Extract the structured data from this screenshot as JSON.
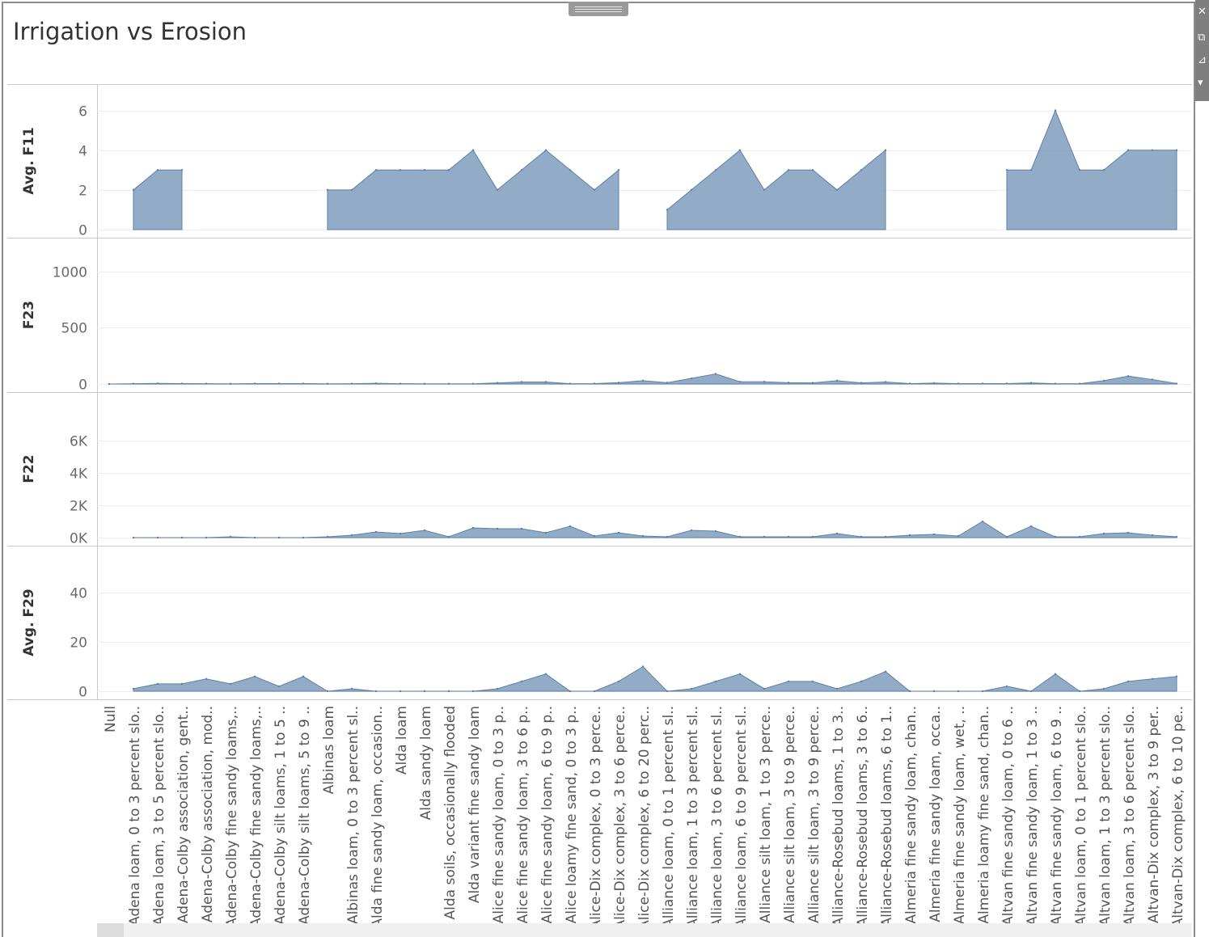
{
  "title": "Irrigation vs Erosion",
  "colors": {
    "area_fill": "#7f9dbd",
    "area_stroke": "#5e7fa6",
    "grid": "#ececec",
    "axis": "#c8c8c8",
    "text": "#555555"
  },
  "icons": {
    "close": "close-icon",
    "duplicate": "duplicate-icon",
    "filter": "filter-icon",
    "more": "more-options-icon"
  },
  "chart_data": {
    "type": "area",
    "categories": [
      "Null",
      "Adena loam, 0 to 3 percent slo..",
      "Adena loam, 3 to 5 percent slo..",
      "Adena-Colby association, gent..",
      "Adena-Colby association, mod..",
      "Adena-Colby fine sandy loams,..",
      "Adena-Colby fine sandy loams,..",
      "Adena-Colby silt loams, 1 to 5 ..",
      "Adena-Colby silt loams, 5 to 9 ..",
      "Albinas loam",
      "Albinas loam, 0 to 3 percent sl..",
      "Alda fine sandy loam, occasion..",
      "Alda loam",
      "Alda sandy loam",
      "Alda soils, occasionally flooded",
      "Alda variant fine sandy loam",
      "Alice fine sandy loam, 0 to 3 p..",
      "Alice fine sandy loam, 3 to 6 p..",
      "Alice fine sandy loam, 6 to 9 p..",
      "Alice loamy fine sand, 0 to 3 p..",
      "Alice-Dix complex, 0 to 3 perce..",
      "Alice-Dix complex, 3 to 6 perce..",
      "Alice-Dix complex, 6 to 20 perc..",
      "Alliance loam, 0 to 1 percent sl..",
      "Alliance loam, 1 to 3 percent sl..",
      "Alliance loam, 3 to 6 percent sl..",
      "Alliance loam, 6 to 9 percent sl..",
      "Alliance silt loam, 1 to 3 perce..",
      "Alliance silt loam, 3 to 9 perce..",
      "Alliance silt loam, 3 to 9 perce..",
      "Alliance-Rosebud loams, 1 to 3..",
      "Alliance-Rosebud loams, 3 to 6..",
      "Alliance-Rosebud loams, 6 to 1..",
      "Almeria fine sandy loam, chan..",
      "Almeria fine sandy loam, occa..",
      "Almeria fine sandy loam, wet, ..",
      "Almeria loamy fine sand, chan..",
      "Altvan fine sandy loam, 0 to 6 ..",
      "Altvan fine sandy loam, 1 to 3 ..",
      "Altvan fine sandy loam, 6 to 9 ..",
      "Altvan loam, 0 to 1 percent slo..",
      "Altvan loam, 1 to 3 percent slo..",
      "Altvan loam, 3 to 6 percent slo..",
      "Altvan-Dix complex, 3 to 9 per..",
      "Altvan-Dix complex, 6 to 10 pe.."
    ],
    "panels": [
      {
        "label": "Avg. F11",
        "ylim": [
          0,
          7
        ],
        "ticks": [
          0,
          2,
          4,
          6
        ],
        "tick_labels": [
          "0",
          "2",
          "4",
          "6"
        ],
        "values": [
          null,
          2,
          3,
          3,
          null,
          null,
          null,
          null,
          null,
          2,
          2,
          3,
          3,
          3,
          3,
          4,
          2,
          3,
          4,
          3,
          2,
          3,
          null,
          1,
          2,
          3,
          4,
          2,
          3,
          3,
          2,
          3,
          4,
          null,
          null,
          null,
          null,
          3,
          3,
          6,
          3,
          3,
          4,
          4,
          4
        ]
      },
      {
        "label": "F23",
        "ylim": [
          0,
          1200
        ],
        "ticks": [
          0,
          500,
          1000
        ],
        "tick_labels": [
          "0",
          "500",
          "1000"
        ],
        "values": [
          0,
          3,
          5,
          4,
          3,
          2,
          4,
          4,
          4,
          2,
          3,
          6,
          3,
          2,
          2,
          2,
          10,
          18,
          18,
          3,
          4,
          12,
          30,
          12,
          50,
          90,
          20,
          20,
          12,
          10,
          30,
          10,
          18,
          4,
          8,
          4,
          4,
          4,
          10,
          3,
          3,
          30,
          70,
          40,
          4
        ]
      },
      {
        "label": "F22",
        "ylim": [
          0,
          8000
        ],
        "ticks": [
          0,
          2000,
          4000,
          6000
        ],
        "tick_labels": [
          "0K",
          "2K",
          "4K",
          "6K"
        ],
        "values": [
          null,
          0,
          0,
          0,
          0,
          50,
          0,
          0,
          0,
          50,
          150,
          350,
          250,
          450,
          50,
          600,
          550,
          550,
          300,
          700,
          100,
          300,
          100,
          50,
          450,
          400,
          50,
          50,
          50,
          50,
          250,
          50,
          50,
          150,
          200,
          100,
          1000,
          50,
          700,
          50,
          50,
          250,
          300,
          150,
          50
        ]
      },
      {
        "label": "Avg. F29",
        "ylim": [
          0,
          50
        ],
        "ticks": [
          0,
          20,
          40
        ],
        "tick_labels": [
          "0",
          "20",
          "40"
        ],
        "values": [
          null,
          1,
          3,
          3,
          5,
          3,
          6,
          2,
          6,
          0,
          1,
          0,
          0,
          0,
          0,
          0,
          1,
          4,
          7,
          0,
          0,
          4,
          10,
          0,
          1,
          4,
          7,
          1,
          4,
          4,
          1,
          4,
          8,
          0,
          0,
          0,
          0,
          2,
          0,
          7,
          0,
          1,
          4,
          5,
          6
        ]
      }
    ]
  }
}
